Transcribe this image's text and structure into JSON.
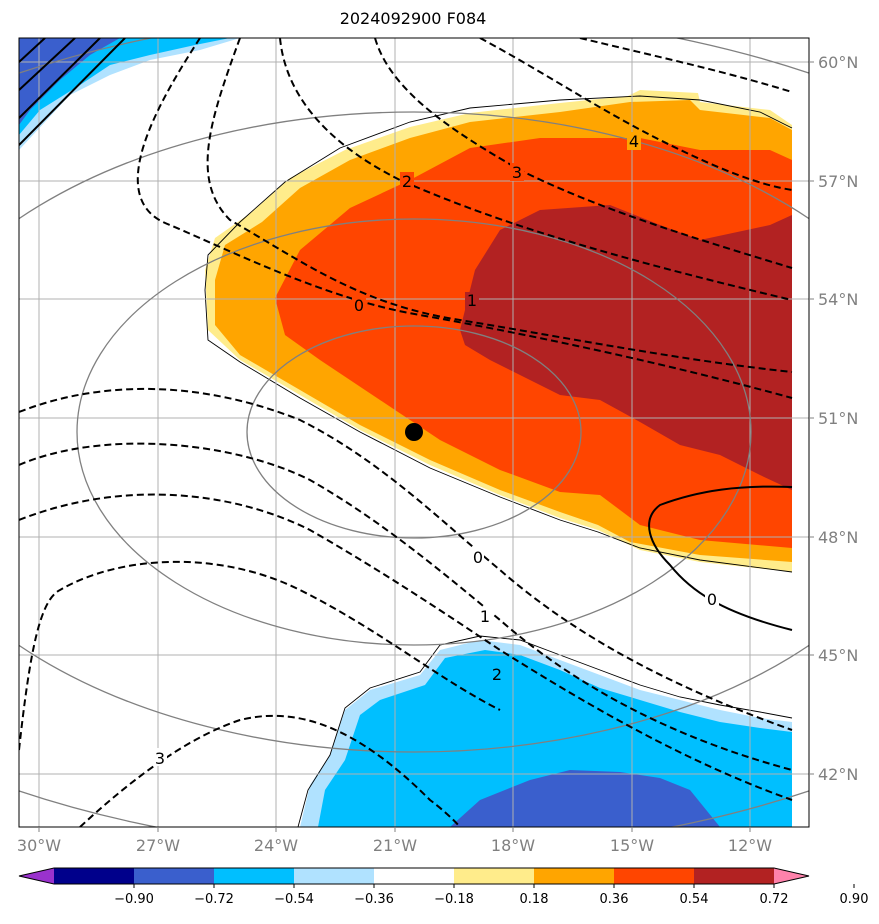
{
  "title": "2024092900 F084",
  "map": {
    "lat_labels": [
      "60°N",
      "57°N",
      "54°N",
      "51°N",
      "48°N",
      "45°N",
      "42°N"
    ],
    "lon_labels": [
      "30°W",
      "27°W",
      "24°W",
      "21°W",
      "18°W",
      "15°W",
      "12°W"
    ],
    "marker": {
      "lon": -20.6,
      "lat": 50.6,
      "color": "#000000"
    },
    "contour_labels": [
      {
        "text": "4",
        "style": "dashed"
      },
      {
        "text": "3",
        "style": "dashed"
      },
      {
        "text": "2",
        "style": "dashed"
      },
      {
        "text": "1",
        "style": "dashed"
      },
      {
        "text": "0",
        "style": "dashed"
      },
      {
        "text": "0",
        "style": "dashed"
      },
      {
        "text": "1",
        "style": "dashed"
      },
      {
        "text": "2",
        "style": "dashed"
      },
      {
        "text": "3",
        "style": "dashed"
      },
      {
        "text": "0",
        "style": "solid"
      }
    ]
  },
  "colorbar": {
    "ticks": [
      "−0.90",
      "−0.72",
      "−0.54",
      "−0.36",
      "−0.18",
      "0.18",
      "0.36",
      "0.54",
      "0.72",
      "0.90"
    ],
    "colors": [
      "#9a32cd",
      "#00008b",
      "#3a5fcd",
      "#00bfff",
      "#b0e2ff",
      "#ffffff",
      "#ffec8b",
      "#ffa500",
      "#ff4500",
      "#b22222",
      "#ff82ab"
    ]
  }
}
